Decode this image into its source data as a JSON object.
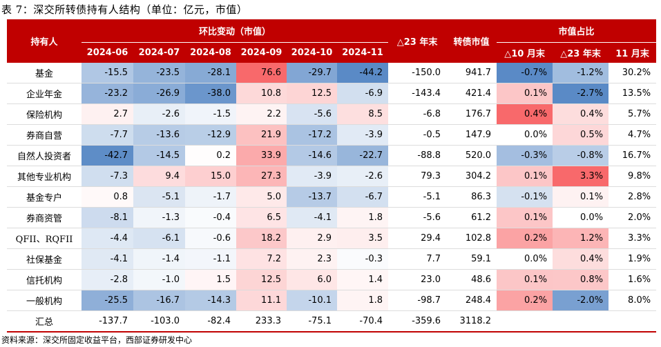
{
  "title": "表 7：深交所转债持有人结构（单位：亿元，市值）",
  "source": "资料来源：深交所固定收益平台，西部证券研发中心",
  "header": {
    "holder": "持有人",
    "group_change": "环比变动（市值）",
    "delta23": "△23 年末",
    "market_value": "转债市值",
    "group_share": "市值占比",
    "months": [
      "2024-06",
      "2024-07",
      "2024-08",
      "2024-09",
      "2024-10",
      "2024-11"
    ],
    "share_cols": [
      "△10 月末",
      "△23 年末",
      "11 月末"
    ]
  },
  "rows": [
    {
      "label": "基金",
      "changes": [
        "-15.5",
        "-23.5",
        "-28.1",
        "76.6",
        "-29.7",
        "-44.2"
      ],
      "delta23": "-150.0",
      "mv": "941.7",
      "shares": [
        "-0.7%",
        "-1.2%",
        "30.2%"
      ]
    },
    {
      "label": "企业年金",
      "changes": [
        "-23.2",
        "-26.9",
        "-38.0",
        "10.8",
        "12.5",
        "-6.9"
      ],
      "delta23": "-143.4",
      "mv": "421.4",
      "shares": [
        "0.1%",
        "-2.7%",
        "13.5%"
      ]
    },
    {
      "label": "保险机构",
      "changes": [
        "2.7",
        "-2.6",
        "-1.5",
        "2.2",
        "-5.6",
        "8.5"
      ],
      "delta23": "-6.8",
      "mv": "176.7",
      "shares": [
        "0.4%",
        "0.4%",
        "5.7%"
      ]
    },
    {
      "label": "券商自营",
      "changes": [
        "-7.7",
        "-13.6",
        "-12.9",
        "21.9",
        "-17.2",
        "-3.9"
      ],
      "delta23": "-0.5",
      "mv": "147.9",
      "shares": [
        "0.0%",
        "0.5%",
        "4.7%"
      ]
    },
    {
      "label": "自然人投资者",
      "changes": [
        "-42.7",
        "-14.5",
        "0.2",
        "33.9",
        "-14.6",
        "-22.7"
      ],
      "delta23": "-88.8",
      "mv": "520.0",
      "shares": [
        "-0.3%",
        "-0.8%",
        "16.7%"
      ]
    },
    {
      "label": "其他专业机构",
      "changes": [
        "-7.3",
        "9.4",
        "15.0",
        "27.3",
        "-3.9",
        "-2.6"
      ],
      "delta23": "79.3",
      "mv": "304.2",
      "shares": [
        "0.1%",
        "3.3%",
        "9.8%"
      ]
    },
    {
      "label": "基金专户",
      "changes": [
        "0.8",
        "-5.1",
        "-1.7",
        "5.0",
        "-13.7",
        "-6.7"
      ],
      "delta23": "-5.1",
      "mv": "86.3",
      "shares": [
        "-0.1%",
        "0.1%",
        "2.8%"
      ]
    },
    {
      "label": "券商资管",
      "changes": [
        "-8.1",
        "-1.3",
        "-0.4",
        "6.5",
        "-4.1",
        "1.8"
      ],
      "delta23": "-5.6",
      "mv": "61.2",
      "shares": [
        "0.1%",
        "0.0%",
        "2.0%"
      ]
    },
    {
      "label": "QFII、RQFII",
      "changes": [
        "-4.4",
        "-6.1",
        "-0.6",
        "18.2",
        "2.9",
        "3.5"
      ],
      "delta23": "29.4",
      "mv": "102.8",
      "shares": [
        "0.2%",
        "1.2%",
        "3.3%"
      ]
    },
    {
      "label": "社保基金",
      "changes": [
        "-4.1",
        "-1.4",
        "-1.1",
        "7.2",
        "2.3",
        "-0.3"
      ],
      "delta23": "7.7",
      "mv": "59.1",
      "shares": [
        "0.0%",
        "0.4%",
        "1.9%"
      ]
    },
    {
      "label": "信托机构",
      "changes": [
        "-2.8",
        "-1.0",
        "1.5",
        "12.5",
        "6.0",
        "1.4"
      ],
      "delta23": "23.0",
      "mv": "48.6",
      "shares": [
        "0.1%",
        "0.8%",
        "1.6%"
      ]
    },
    {
      "label": "一般机构",
      "changes": [
        "-25.5",
        "-16.7",
        "-14.3",
        "11.1",
        "-10.1",
        "1.8"
      ],
      "delta23": "-98.7",
      "mv": "248.4",
      "shares": [
        "0.2%",
        "-2.0%",
        "8.0%"
      ]
    }
  ],
  "total": {
    "label": "汇总",
    "changes": [
      "-137.7",
      "-103.0",
      "-82.4",
      "233.3",
      "-75.1",
      "-70.4"
    ],
    "delta23": "-359.6",
    "mv": "3118.2"
  },
  "colors": {
    "header_bg": "#c00000",
    "positive": "#f8696b",
    "negative": "#5a8ac6",
    "neutral": "#ffffff"
  }
}
